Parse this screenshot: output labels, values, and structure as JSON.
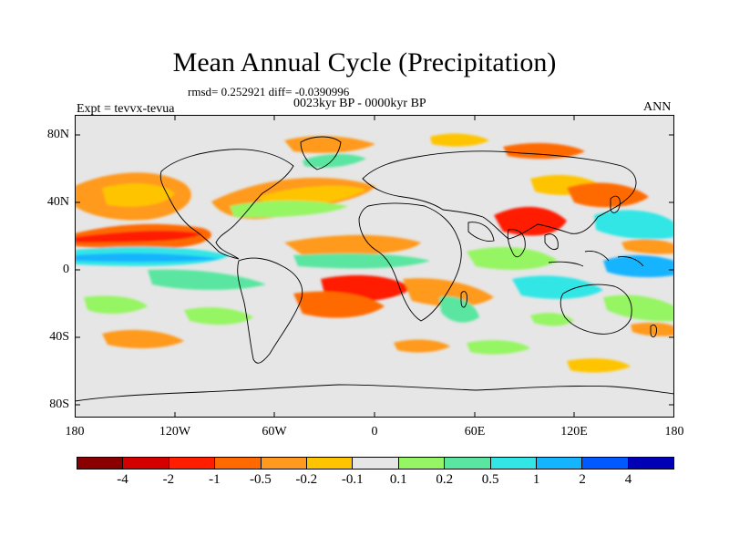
{
  "title": "Mean Annual Cycle (Precipitation)",
  "stats": "rmsd= 0.252921 diff= -0.0390996",
  "period": "0023kyr BP - 0000kyr BP",
  "experiment": "Expt = tevvx-tevua",
  "season": "ANN",
  "y_axis_labels": [
    "80N",
    "40N",
    "0",
    "40S",
    "80S"
  ],
  "x_axis_labels": [
    "180",
    "120W",
    "60W",
    "0",
    "60E",
    "120E",
    "180"
  ],
  "colorbar": {
    "colors": [
      "#8a0000",
      "#d40000",
      "#ff1e00",
      "#ff6a00",
      "#ff9a1e",
      "#ffc400",
      "#e6e6e6",
      "#96f564",
      "#5ae6a0",
      "#32e6e6",
      "#14b4ff",
      "#005aff",
      "#0000b4"
    ],
    "labels": [
      "-4",
      "-2",
      "-1",
      "-0.5",
      "-0.2",
      "-0.1",
      "0.1",
      "0.2",
      "0.5",
      "1",
      "2",
      "4"
    ]
  },
  "map": {
    "background_color": "#e6e6e6",
    "lon_range": [
      -180,
      180
    ],
    "lat_range": [
      -90,
      90
    ]
  }
}
